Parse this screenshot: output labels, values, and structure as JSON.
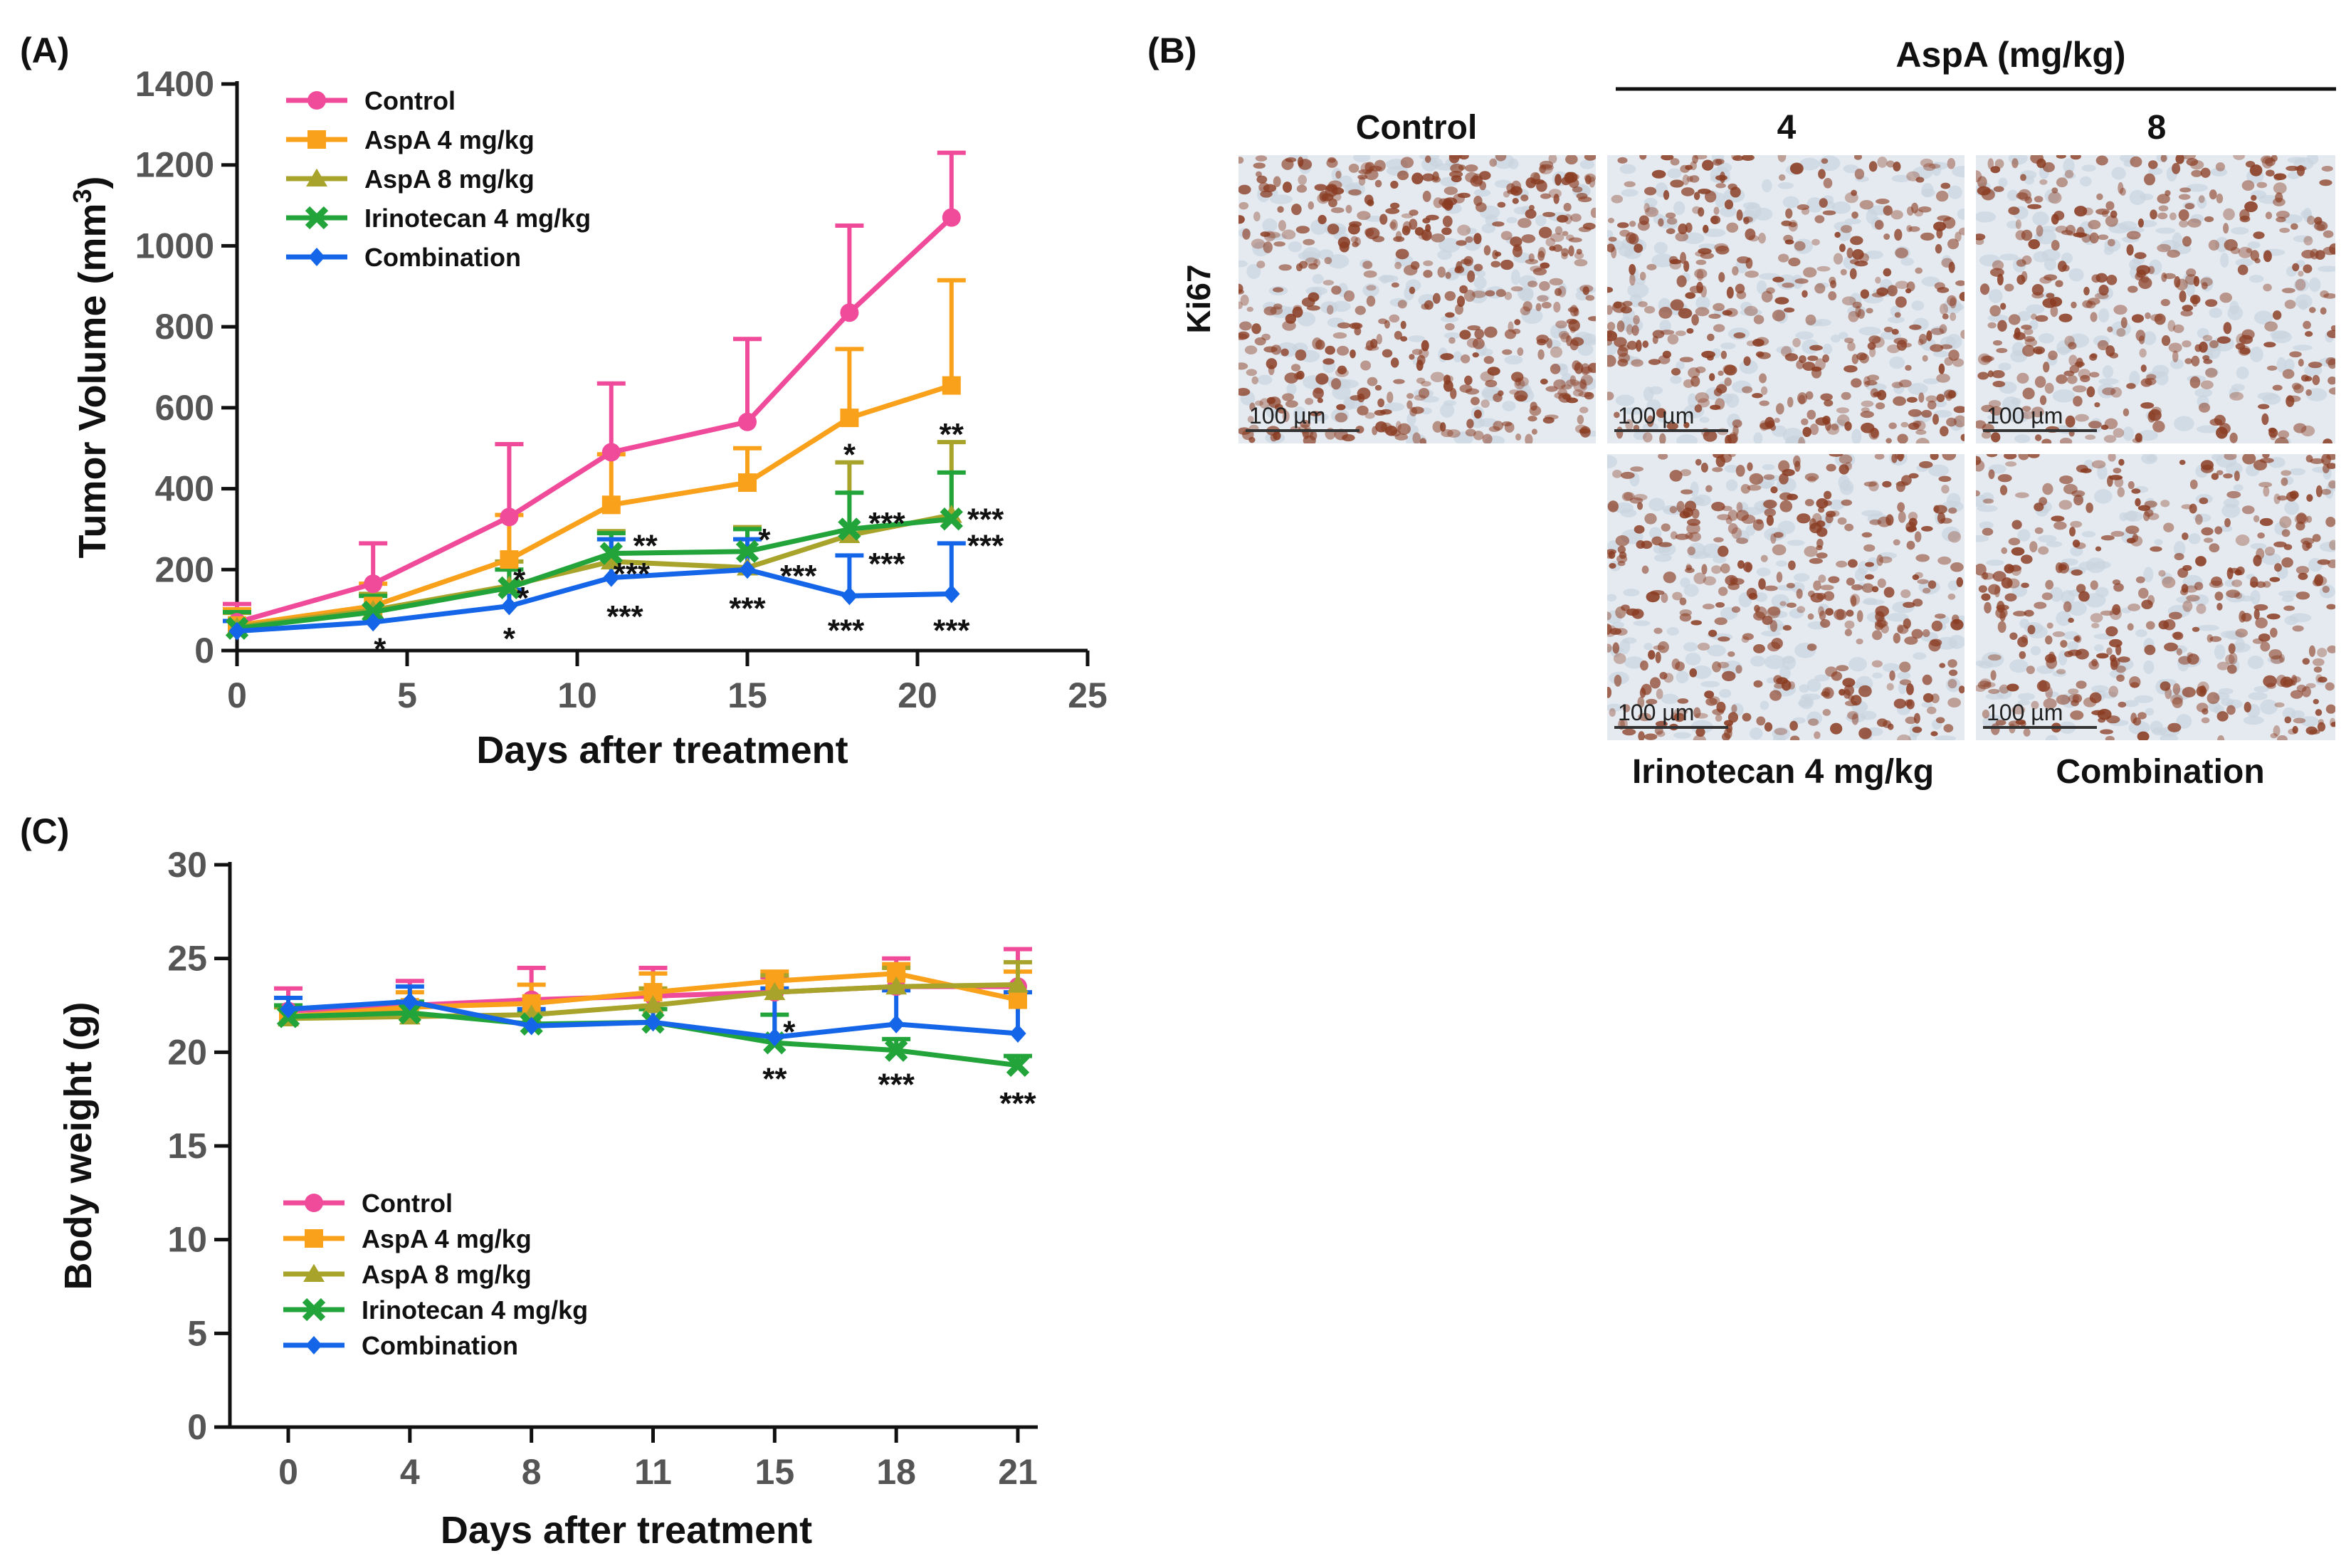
{
  "figure": {
    "panel_labels": {
      "a": "(A)",
      "b": "(B)",
      "c": "(C)"
    },
    "colors": {
      "control": "#F04B9A",
      "aspa4": "#F9A11B",
      "aspa8": "#A7A32B",
      "irinotecan": "#22A43A",
      "combination": "#1565E8",
      "micro_bg": "#E4EAF0",
      "nucleus": "#8A3C22"
    }
  },
  "panel_b": {
    "group_header": "AspA (mg/kg)",
    "col_control": "Control",
    "col_4": "4",
    "col_8": "8",
    "row_label": "Ki67",
    "scale_bar": "100 µm",
    "label_irinotecan": "Irinotecan 4 mg/kg",
    "label_combination": "Combination"
  },
  "chart_data": [
    {
      "id": "A",
      "type": "line",
      "title": "",
      "xlabel": "Days after treatment",
      "ylabel": "Tumor Volume (mm",
      "ylabel_sup": "3",
      "ylabel_close": ")",
      "xlim": [
        0,
        25
      ],
      "ylim": [
        0,
        1400
      ],
      "xticks": [
        0,
        5,
        10,
        15,
        20,
        25
      ],
      "yticks": [
        0,
        200,
        400,
        600,
        800,
        1000,
        1200,
        1400
      ],
      "x": [
        0,
        4,
        8,
        11,
        15,
        18,
        21
      ],
      "legend_position": "top-left",
      "series": [
        {
          "name": "Control",
          "color": "#F04B9A",
          "marker": "circle",
          "values": [
            70,
            165,
            330,
            490,
            565,
            835,
            1070
          ],
          "errors": [
            45,
            100,
            180,
            170,
            205,
            215,
            160
          ]
        },
        {
          "name": "AspA 4 mg/kg",
          "color": "#F9A11B",
          "marker": "square",
          "values": [
            62,
            110,
            225,
            360,
            415,
            575,
            655
          ],
          "errors": [
            40,
            55,
            110,
            125,
            85,
            170,
            260
          ]
        },
        {
          "name": "AspA 8 mg/kg",
          "color": "#A7A32B",
          "marker": "triangle",
          "values": [
            58,
            100,
            160,
            220,
            205,
            285,
            335
          ],
          "errors": [
            35,
            40,
            60,
            75,
            100,
            180,
            180
          ]
        },
        {
          "name": "Irinotecan 4 mg/kg",
          "color": "#22A43A",
          "marker": "cross",
          "values": [
            55,
            95,
            155,
            240,
            245,
            300,
            325
          ],
          "errors": [
            40,
            40,
            45,
            50,
            55,
            90,
            115
          ]
        },
        {
          "name": "Combination",
          "color": "#1565E8",
          "marker": "diamond",
          "values": [
            48,
            70,
            110,
            180,
            200,
            135,
            140
          ],
          "errors": [
            25,
            30,
            40,
            95,
            75,
            100,
            125
          ]
        }
      ],
      "annotations": [
        {
          "text": "*",
          "x": 4.2,
          "y": 10
        },
        {
          "text": "*",
          "x": 8.3,
          "y": 180
        },
        {
          "text": "*",
          "x": 8.4,
          "y": 135
        },
        {
          "text": "*",
          "x": 8.0,
          "y": 35
        },
        {
          "text": "**",
          "x": 12.0,
          "y": 265
        },
        {
          "text": "***",
          "x": 11.6,
          "y": 195
        },
        {
          "text": "***",
          "x": 11.4,
          "y": 90
        },
        {
          "text": "*",
          "x": 15.5,
          "y": 280
        },
        {
          "text": "***",
          "x": 16.5,
          "y": 190
        },
        {
          "text": "***",
          "x": 15.0,
          "y": 110
        },
        {
          "text": "*",
          "x": 18.0,
          "y": 490
        },
        {
          "text": "***",
          "x": 19.1,
          "y": 320
        },
        {
          "text": "***",
          "x": 19.1,
          "y": 220
        },
        {
          "text": "***",
          "x": 17.9,
          "y": 55
        },
        {
          "text": "**",
          "x": 21.0,
          "y": 540
        },
        {
          "text": "***",
          "x": 22.0,
          "y": 330
        },
        {
          "text": "***",
          "x": 22.0,
          "y": 265
        },
        {
          "text": "***",
          "x": 21.0,
          "y": 55
        }
      ]
    },
    {
      "id": "C",
      "type": "line",
      "title": "",
      "xlabel": "Days after treatment",
      "ylabel": "Body weight (g)",
      "ylim": [
        0,
        30
      ],
      "yticks": [
        0,
        5,
        10,
        15,
        20,
        25,
        30
      ],
      "categories": [
        "0",
        "4",
        "8",
        "11",
        "15",
        "18",
        "21"
      ],
      "legend_position": "lower-left",
      "series": [
        {
          "name": "Control",
          "color": "#F04B9A",
          "marker": "circle",
          "values": [
            22.2,
            22.5,
            22.8,
            23.0,
            23.2,
            23.5,
            23.5
          ],
          "errors": [
            1.2,
            1.3,
            1.7,
            1.5,
            0.8,
            1.5,
            2.0
          ]
        },
        {
          "name": "AspA 4 mg/kg",
          "color": "#F9A11B",
          "marker": "square",
          "values": [
            21.9,
            22.4,
            22.6,
            23.2,
            23.8,
            24.2,
            22.8
          ],
          "errors": [
            0.6,
            0.8,
            1.0,
            1.0,
            0.5,
            0.5,
            1.5
          ]
        },
        {
          "name": "AspA 8 mg/kg",
          "color": "#A7A32B",
          "marker": "triangle",
          "values": [
            21.8,
            21.9,
            22.0,
            22.5,
            23.2,
            23.5,
            23.6
          ],
          "errors": [
            0.6,
            0.7,
            0.8,
            0.9,
            0.9,
            1.0,
            1.2
          ]
        },
        {
          "name": "Irinotecan 4 mg/kg",
          "color": "#22A43A",
          "marker": "cross",
          "values": [
            21.9,
            22.1,
            21.5,
            21.6,
            20.5,
            20.1,
            19.3
          ],
          "errors": [
            0.6,
            0.6,
            0.6,
            0.7,
            1.5,
            0.6,
            0.5
          ]
        },
        {
          "name": "Combination",
          "color": "#1565E8",
          "marker": "diamond",
          "values": [
            22.3,
            22.7,
            21.4,
            21.6,
            20.8,
            21.5,
            21.0
          ],
          "errors": [
            0.6,
            0.8,
            0.9,
            1.4,
            2.6,
            1.8,
            2.2
          ]
        }
      ],
      "annotations": [
        {
          "text": "*",
          "cat": 4,
          "dx": 0.12,
          "y": 21.2
        },
        {
          "text": "**",
          "cat": 4,
          "dx": 0.0,
          "y": 18.7
        },
        {
          "text": "***",
          "cat": 5,
          "dx": 0.0,
          "y": 18.4
        },
        {
          "text": "***",
          "cat": 6,
          "dx": 0.0,
          "y": 17.4
        }
      ]
    }
  ]
}
